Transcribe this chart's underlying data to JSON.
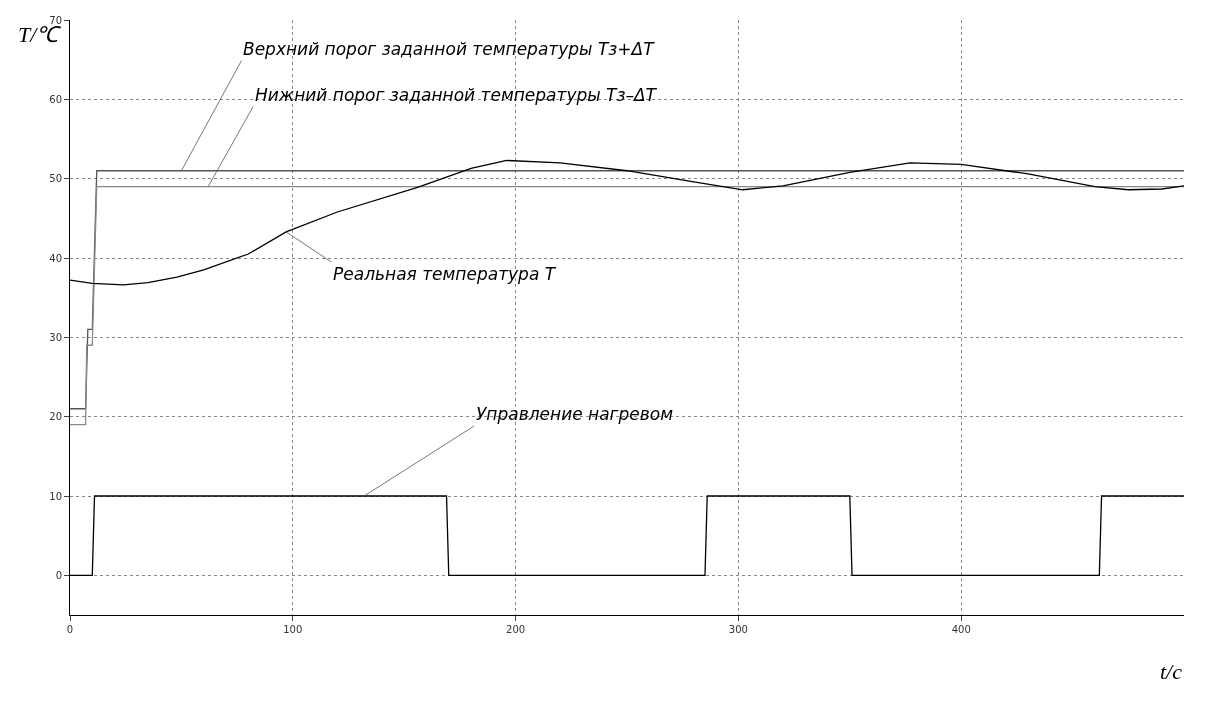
{
  "chart_data": {
    "type": "line",
    "xlabel": "t/c",
    "ylabel": "T/℃",
    "xlim": [
      0,
      500
    ],
    "xticks": [
      0,
      100,
      200,
      300,
      400
    ],
    "ylim": [
      -5,
      70
    ],
    "yticks": [
      0,
      10,
      20,
      30,
      40,
      50,
      60,
      70
    ],
    "grid": true,
    "legend": false,
    "line_style": "solid",
    "marker": "none",
    "series": [
      {
        "color": "#555555",
        "x": [
          0,
          7,
          8,
          10,
          12,
          500
        ],
        "values": [
          21,
          21,
          31,
          31,
          51,
          51
        ]
      },
      {
        "color": "#888888",
        "x": [
          0,
          7,
          7.5,
          10,
          12,
          500
        ],
        "values": [
          19,
          19,
          29,
          29,
          49,
          49
        ]
      },
      {
        "color": "#000000",
        "x": [
          0,
          10,
          24,
          35,
          48,
          60,
          80,
          97,
          120,
          156,
          180,
          196,
          220,
          250,
          280,
          302,
          320,
          350,
          377,
          400,
          430,
          460,
          475,
          490,
          500
        ],
        "values": [
          37.2,
          36.8,
          36.6,
          36.9,
          37.6,
          38.5,
          40.5,
          43.3,
          45.8,
          48.9,
          51.3,
          52.3,
          52.0,
          51.0,
          49.6,
          48.6,
          49.1,
          50.8,
          52.0,
          51.8,
          50.6,
          49.0,
          48.6,
          48.7,
          49.1
        ]
      },
      {
        "color": "#000000",
        "type": "step",
        "x": [
          0,
          10,
          11,
          169,
          170,
          285,
          286,
          350,
          351,
          462,
          463,
          500
        ],
        "values": [
          0,
          0,
          10,
          10,
          0,
          0,
          10,
          10,
          0,
          0,
          10,
          10
        ]
      }
    ],
    "annotations": [
      {
        "text": "Верхний порог заданной температуры Tз+ΔT",
        "x": 50,
        "y": 51
      },
      {
        "text": "Нижний порог заданной температуры Tз–ΔT",
        "x": 62,
        "y": 49
      },
      {
        "text": "Реальная температура T",
        "x": 97,
        "y": 43.3
      },
      {
        "text": "Управление нагревом",
        "x": 132,
        "y": 10
      }
    ]
  }
}
